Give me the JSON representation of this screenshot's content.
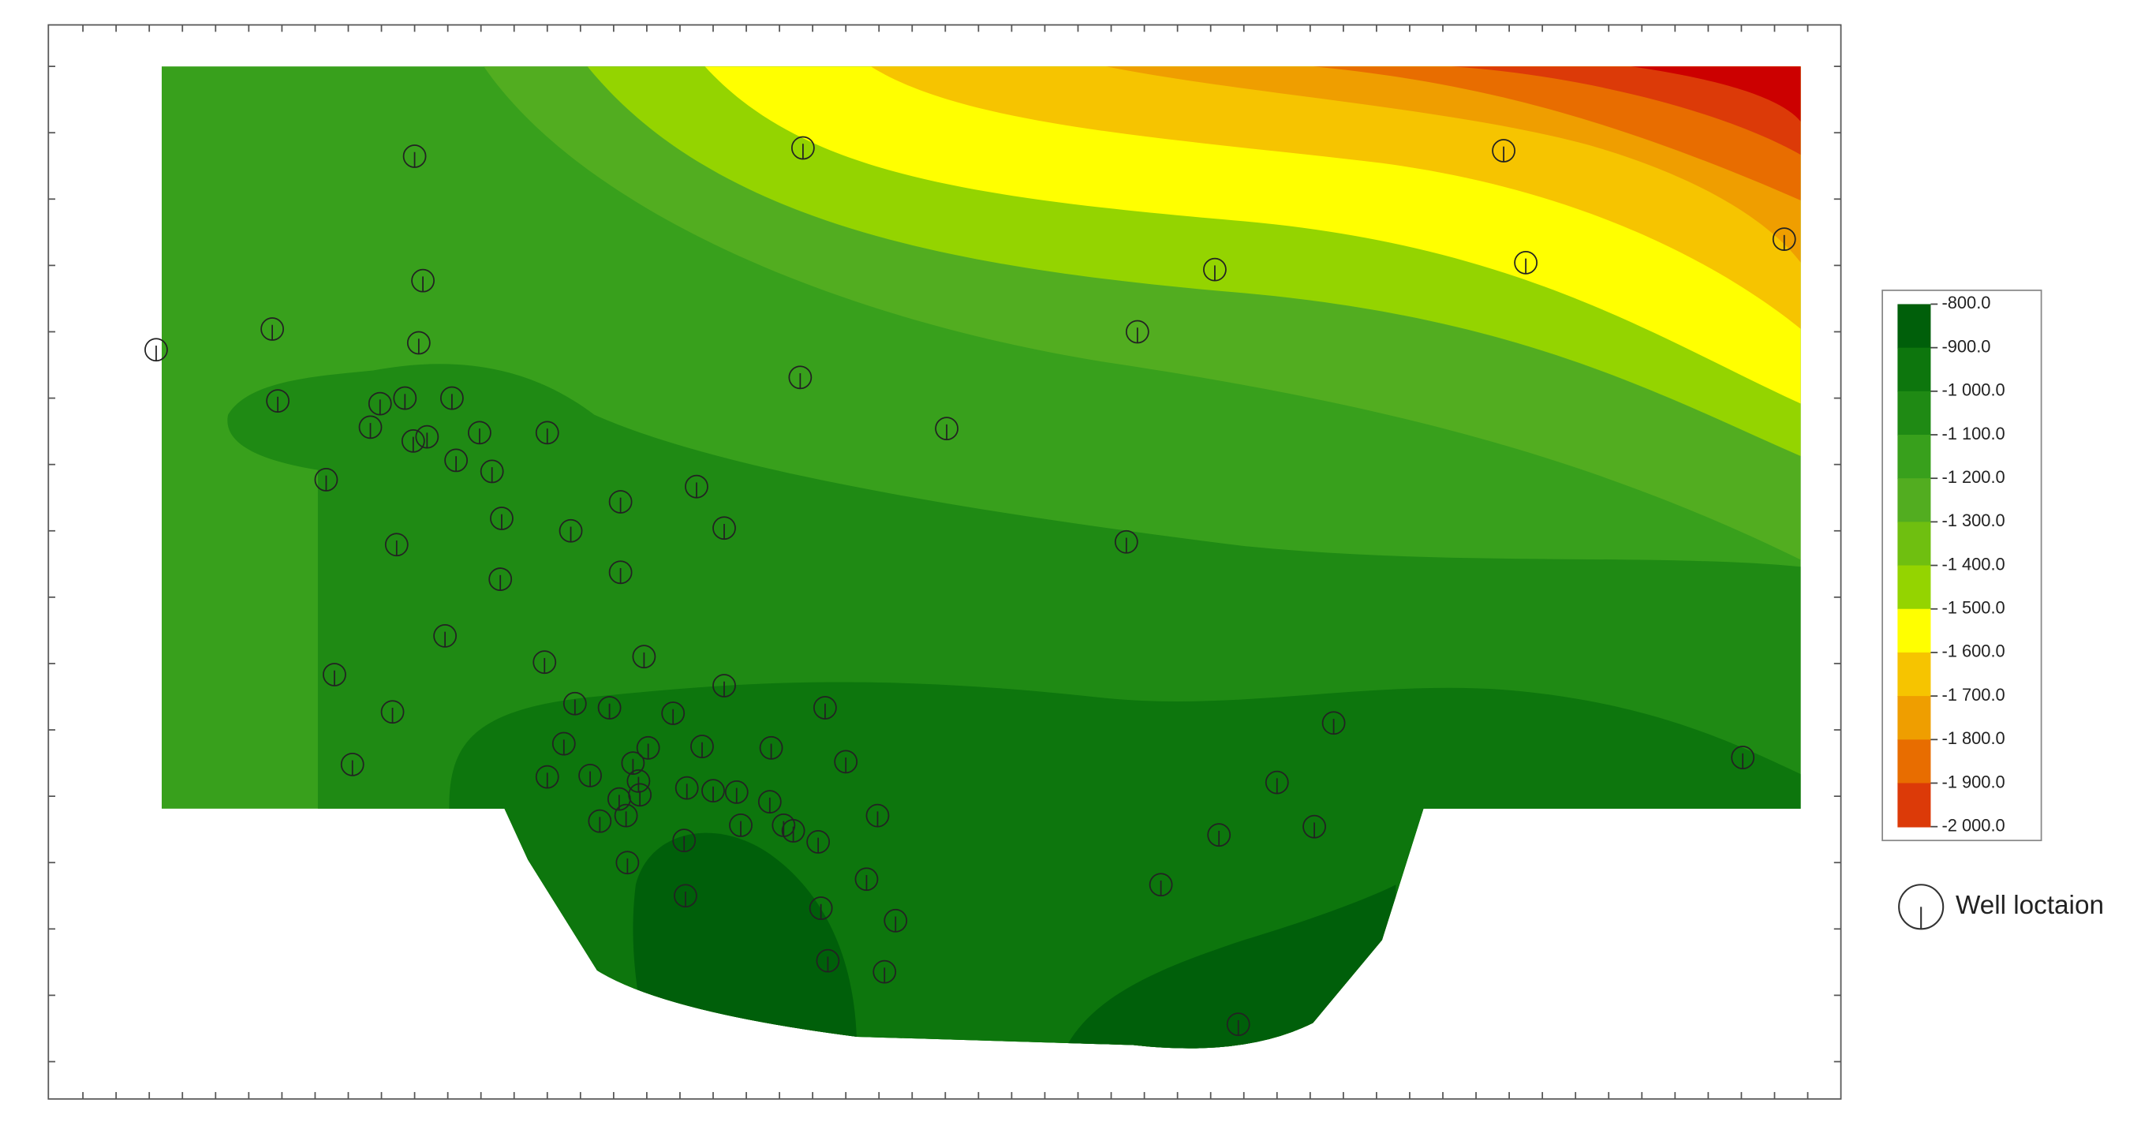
{
  "legend": {
    "levels": [
      "-800.0",
      "-900.0",
      "-1 000.0",
      "-1 100.0",
      "-1 200.0",
      "-1 300.0",
      "-1 400.0",
      "-1 500.0",
      "-1 600.0",
      "-1 700.0",
      "-1 800.0",
      "-1 900.0",
      "-2 000.0"
    ],
    "colors": [
      "#005f0a",
      "#0d760d",
      "#1f8a14",
      "#38a01c",
      "#52ad20",
      "#6fbf10",
      "#94d400",
      "#ffff00",
      "#f6c400",
      "#ef9e00",
      "#e86d00",
      "#dc3a08",
      "#cc0000"
    ]
  },
  "well_legend": "Well loctaion"
}
